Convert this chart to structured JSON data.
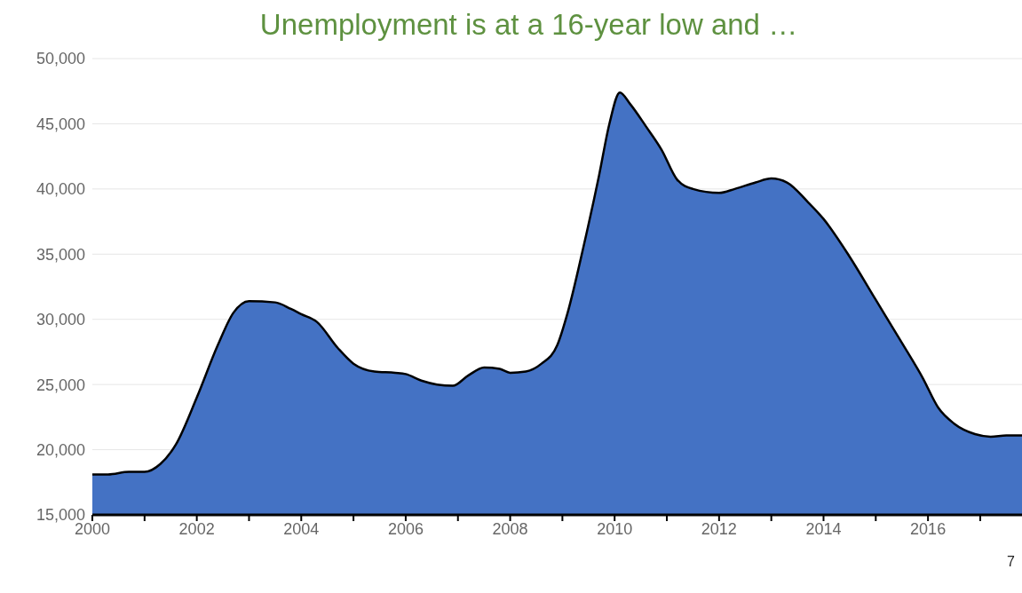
{
  "chart_data": {
    "type": "area",
    "title": "Unemployment is at a 16-year low and …",
    "annotations": [
      "7"
    ],
    "x": [
      2000,
      2000.3,
      2000.7,
      2001,
      2001.3,
      2001.6,
      2002,
      2002.4,
      2002.7,
      2003,
      2003.5,
      2003.8,
      2004,
      2004.3,
      2004.7,
      2005,
      2005.4,
      2005.8,
      2006,
      2006.3,
      2006.6,
      2006.9,
      2007.2,
      2007.5,
      2007.8,
      2008,
      2008.3,
      2008.6,
      2008.9,
      2009.1,
      2009.4,
      2009.7,
      2009.9,
      2010.1,
      2010.3,
      2010.6,
      2010.9,
      2011.2,
      2011.5,
      2012,
      2012.3,
      2012.7,
      2013,
      2013.3,
      2013.7,
      2014,
      2014.5,
      2015,
      2015.5,
      2015.9,
      2016.2,
      2016.5,
      2016.9,
      2017.2,
      2017.5,
      2017.8
    ],
    "series": [
      {
        "color": "#4472c4",
        "values": [
          18100,
          18100,
          18300,
          18300,
          18900,
          20400,
          24000,
          28000,
          30500,
          31400,
          31300,
          30800,
          30400,
          29800,
          27800,
          26600,
          26000,
          25900,
          25800,
          25300,
          25000,
          24900,
          25700,
          26300,
          26200,
          25900,
          26000,
          26600,
          28000,
          30500,
          35500,
          41000,
          45000,
          47400,
          46500,
          44800,
          43000,
          40700,
          40000,
          39700,
          40000,
          40500,
          40800,
          40500,
          39000,
          37700,
          34800,
          31500,
          28200,
          25500,
          23200,
          22000,
          21200,
          21000,
          21100,
          21100
        ]
      }
    ],
    "xlim": [
      2000,
      2017.8
    ],
    "xticks": [
      2000,
      {
        "value": 2001,
        "label": null
      },
      2002,
      {
        "value": 2003,
        "label": null
      },
      2004,
      {
        "value": 2005,
        "label": null
      },
      2006,
      {
        "value": 2007,
        "label": null
      },
      2008,
      {
        "value": 2009,
        "label": null
      },
      2010,
      {
        "value": 2011,
        "label": null
      },
      2012,
      {
        "value": 2013,
        "label": null
      },
      2014,
      {
        "value": 2015,
        "label": null
      },
      2016,
      {
        "value": 2017,
        "label": null
      }
    ],
    "ylim": [
      15000,
      50000
    ],
    "yticks": [
      {
        "value": 15000,
        "label": "15,000"
      },
      {
        "value": 20000,
        "label": "20,000"
      },
      {
        "value": 25000,
        "label": "25,000"
      },
      {
        "value": 30000,
        "label": "30,000"
      },
      {
        "value": 35000,
        "label": "35,000"
      },
      {
        "value": 40000,
        "label": "40,000"
      },
      {
        "value": 45000,
        "label": "45,000"
      },
      {
        "value": 50000,
        "label": "50,000"
      }
    ],
    "grid": "y",
    "legend": false
  }
}
